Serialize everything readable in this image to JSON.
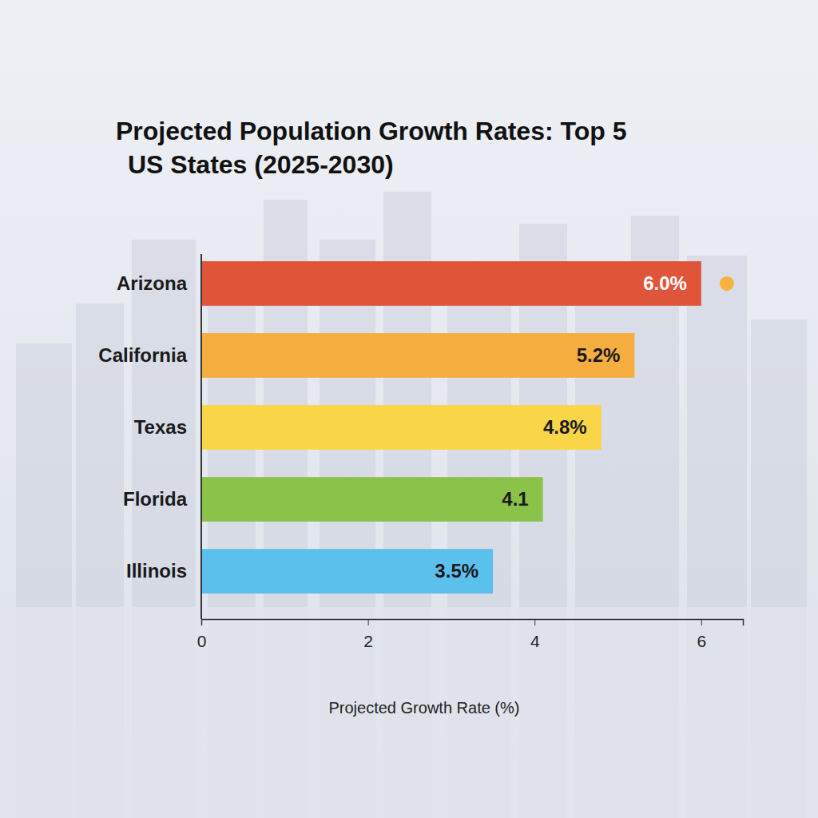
{
  "chart_data": {
    "type": "bar",
    "orientation": "horizontal",
    "title": "Projected Population Growth Rates: Top 5 US States (2025-2030)",
    "x_label": "Projected Growth Rate (%)",
    "categories": [
      "Arizona",
      "California",
      "Texas",
      "Florida",
      "Illinois"
    ],
    "values": [
      6.0,
      5.2,
      4.8,
      4.1,
      3.5
    ],
    "value_labels": [
      "6.0%",
      "5.2%",
      "4.8%",
      "4.1",
      "3.5%"
    ],
    "colors": [
      "#e0553a",
      "#f5ae3f",
      "#f9d548",
      "#8bc34a",
      "#5bc0eb"
    ],
    "xlim": [
      0,
      6.5
    ],
    "xticks": [
      0,
      2,
      4,
      6
    ],
    "grid": false,
    "data_labels": true
  }
}
